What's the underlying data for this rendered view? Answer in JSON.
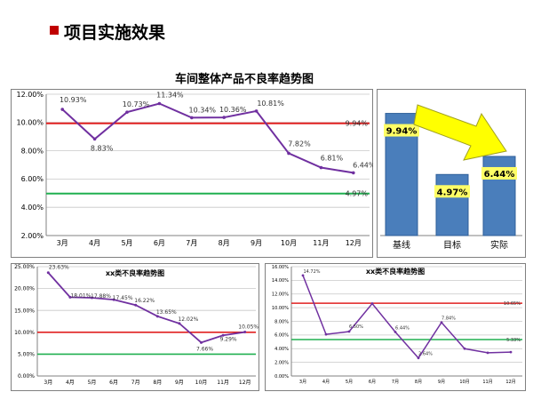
{
  "header": {
    "title": "项目实施效果"
  },
  "colors": {
    "series": "#7030a0",
    "baseline": "#e02020",
    "target": "#20b050",
    "bar": "#4a7ebb",
    "bar_label_bg": "#ffff66",
    "arrow": "#ffff00",
    "header_bullet": "#c00000"
  },
  "chart_data": [
    {
      "type": "line",
      "title": "车间整体产品不良率趋势图",
      "categories": [
        "3月",
        "4月",
        "5月",
        "6月",
        "7月",
        "8月",
        "9月",
        "10月",
        "11月",
        "12月"
      ],
      "values": [
        10.93,
        8.83,
        10.73,
        11.34,
        10.34,
        10.36,
        10.81,
        7.82,
        6.81,
        6.44
      ],
      "value_labels": [
        "10.93%",
        "8.83%",
        "10.73%",
        "11.34%",
        "10.34%",
        "10.36%",
        "10.81%",
        "7.82%",
        "6.81%",
        "6.44%"
      ],
      "reference_lines": [
        {
          "name": "基线",
          "value": 9.94,
          "label": "9.94%",
          "color": "#e02020"
        },
        {
          "name": "目标",
          "value": 4.97,
          "label": "4.97%",
          "color": "#20b050"
        }
      ],
      "yticks": [
        "2.00%",
        "4.00%",
        "6.00%",
        "8.00%",
        "10.00%",
        "12.00%"
      ],
      "ylim": [
        2,
        12
      ],
      "grid": true
    },
    {
      "type": "bar",
      "categories": [
        "基线",
        "目标",
        "实际"
      ],
      "values": [
        9.94,
        4.97,
        6.44
      ],
      "value_labels": [
        "9.94%",
        "4.97%",
        "6.44%"
      ],
      "ylim": [
        0,
        11.5
      ],
      "annotation": "arrow from 基线 to 实际"
    },
    {
      "type": "line",
      "title": "xx类不良率趋势图",
      "categories": [
        "3月",
        "4月",
        "5月",
        "6月",
        "7月",
        "8月",
        "9月",
        "10月",
        "11月",
        "12月"
      ],
      "values": [
        23.63,
        18.01,
        17.88,
        17.45,
        16.22,
        13.65,
        12.02,
        7.66,
        9.29,
        10.05
      ],
      "value_labels": [
        "23.63%",
        "18.01%",
        "17.88%",
        "17.45%",
        "16.22%",
        "13.65%",
        "12.02%",
        "7.66%",
        "9.29%",
        "10.05%"
      ],
      "reference_lines": [
        {
          "value": 10.0,
          "color": "#e02020"
        },
        {
          "value": 5.0,
          "color": "#20b050"
        }
      ],
      "yticks": [
        "0.00%",
        "5.00%",
        "10.00%",
        "15.00%",
        "20.00%",
        "25.00%"
      ],
      "ylim": [
        0,
        25
      ],
      "grid": true
    },
    {
      "type": "line",
      "title": "xx类不良率趋势图",
      "categories": [
        "3月",
        "4月",
        "5月",
        "6月",
        "7月",
        "8月",
        "9月",
        "10月",
        "11月",
        "12月"
      ],
      "values": [
        14.72,
        6.1,
        6.5,
        10.6,
        6.44,
        2.64,
        7.84,
        4.0,
        3.4,
        3.5
      ],
      "value_labels": [
        "14.72%",
        "",
        "6.50%",
        "",
        "6.44%",
        "2.64%",
        "7.84%",
        "",
        "",
        ""
      ],
      "reference_lines": [
        {
          "value": 10.65,
          "label": "10.65%",
          "color": "#e02020"
        },
        {
          "value": 5.33,
          "label": "5.33%",
          "color": "#20b050"
        }
      ],
      "yticks": [
        "0.00%",
        "2.00%",
        "4.00%",
        "6.00%",
        "8.00%",
        "10.00%",
        "12.00%",
        "14.00%",
        "16.00%"
      ],
      "ylim": [
        0,
        16
      ],
      "grid": true
    }
  ]
}
